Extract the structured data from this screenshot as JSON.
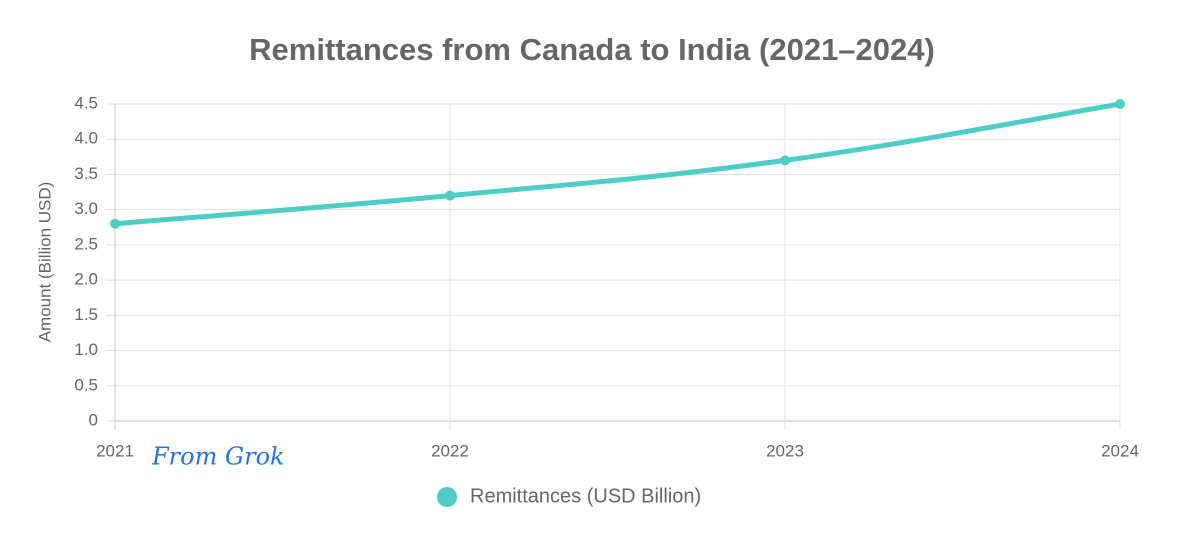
{
  "chart_data": {
    "type": "line",
    "title": "Remittances from Canada to India (2021–2024)",
    "y_label": "Amount (Billion USD)",
    "annotation": "From Grok",
    "categories": [
      "2021",
      "2022",
      "2023",
      "2024"
    ],
    "series": [
      {
        "name": "Remittances (USD Billion)",
        "color": "#4ecdc4",
        "values": [
          2.8,
          3.2,
          3.7,
          4.5
        ]
      }
    ],
    "ylim": [
      0,
      4.5
    ],
    "yticks": [
      0,
      0.5,
      {
        "value": 1,
        "label": "1.0"
      },
      1.5,
      {
        "value": 2,
        "label": "2.0"
      },
      2.5,
      {
        "value": 3,
        "label": "3.0"
      },
      3.5,
      {
        "value": 4,
        "label": "4.0"
      },
      4.5
    ],
    "grid": true,
    "legend": "bottom"
  }
}
